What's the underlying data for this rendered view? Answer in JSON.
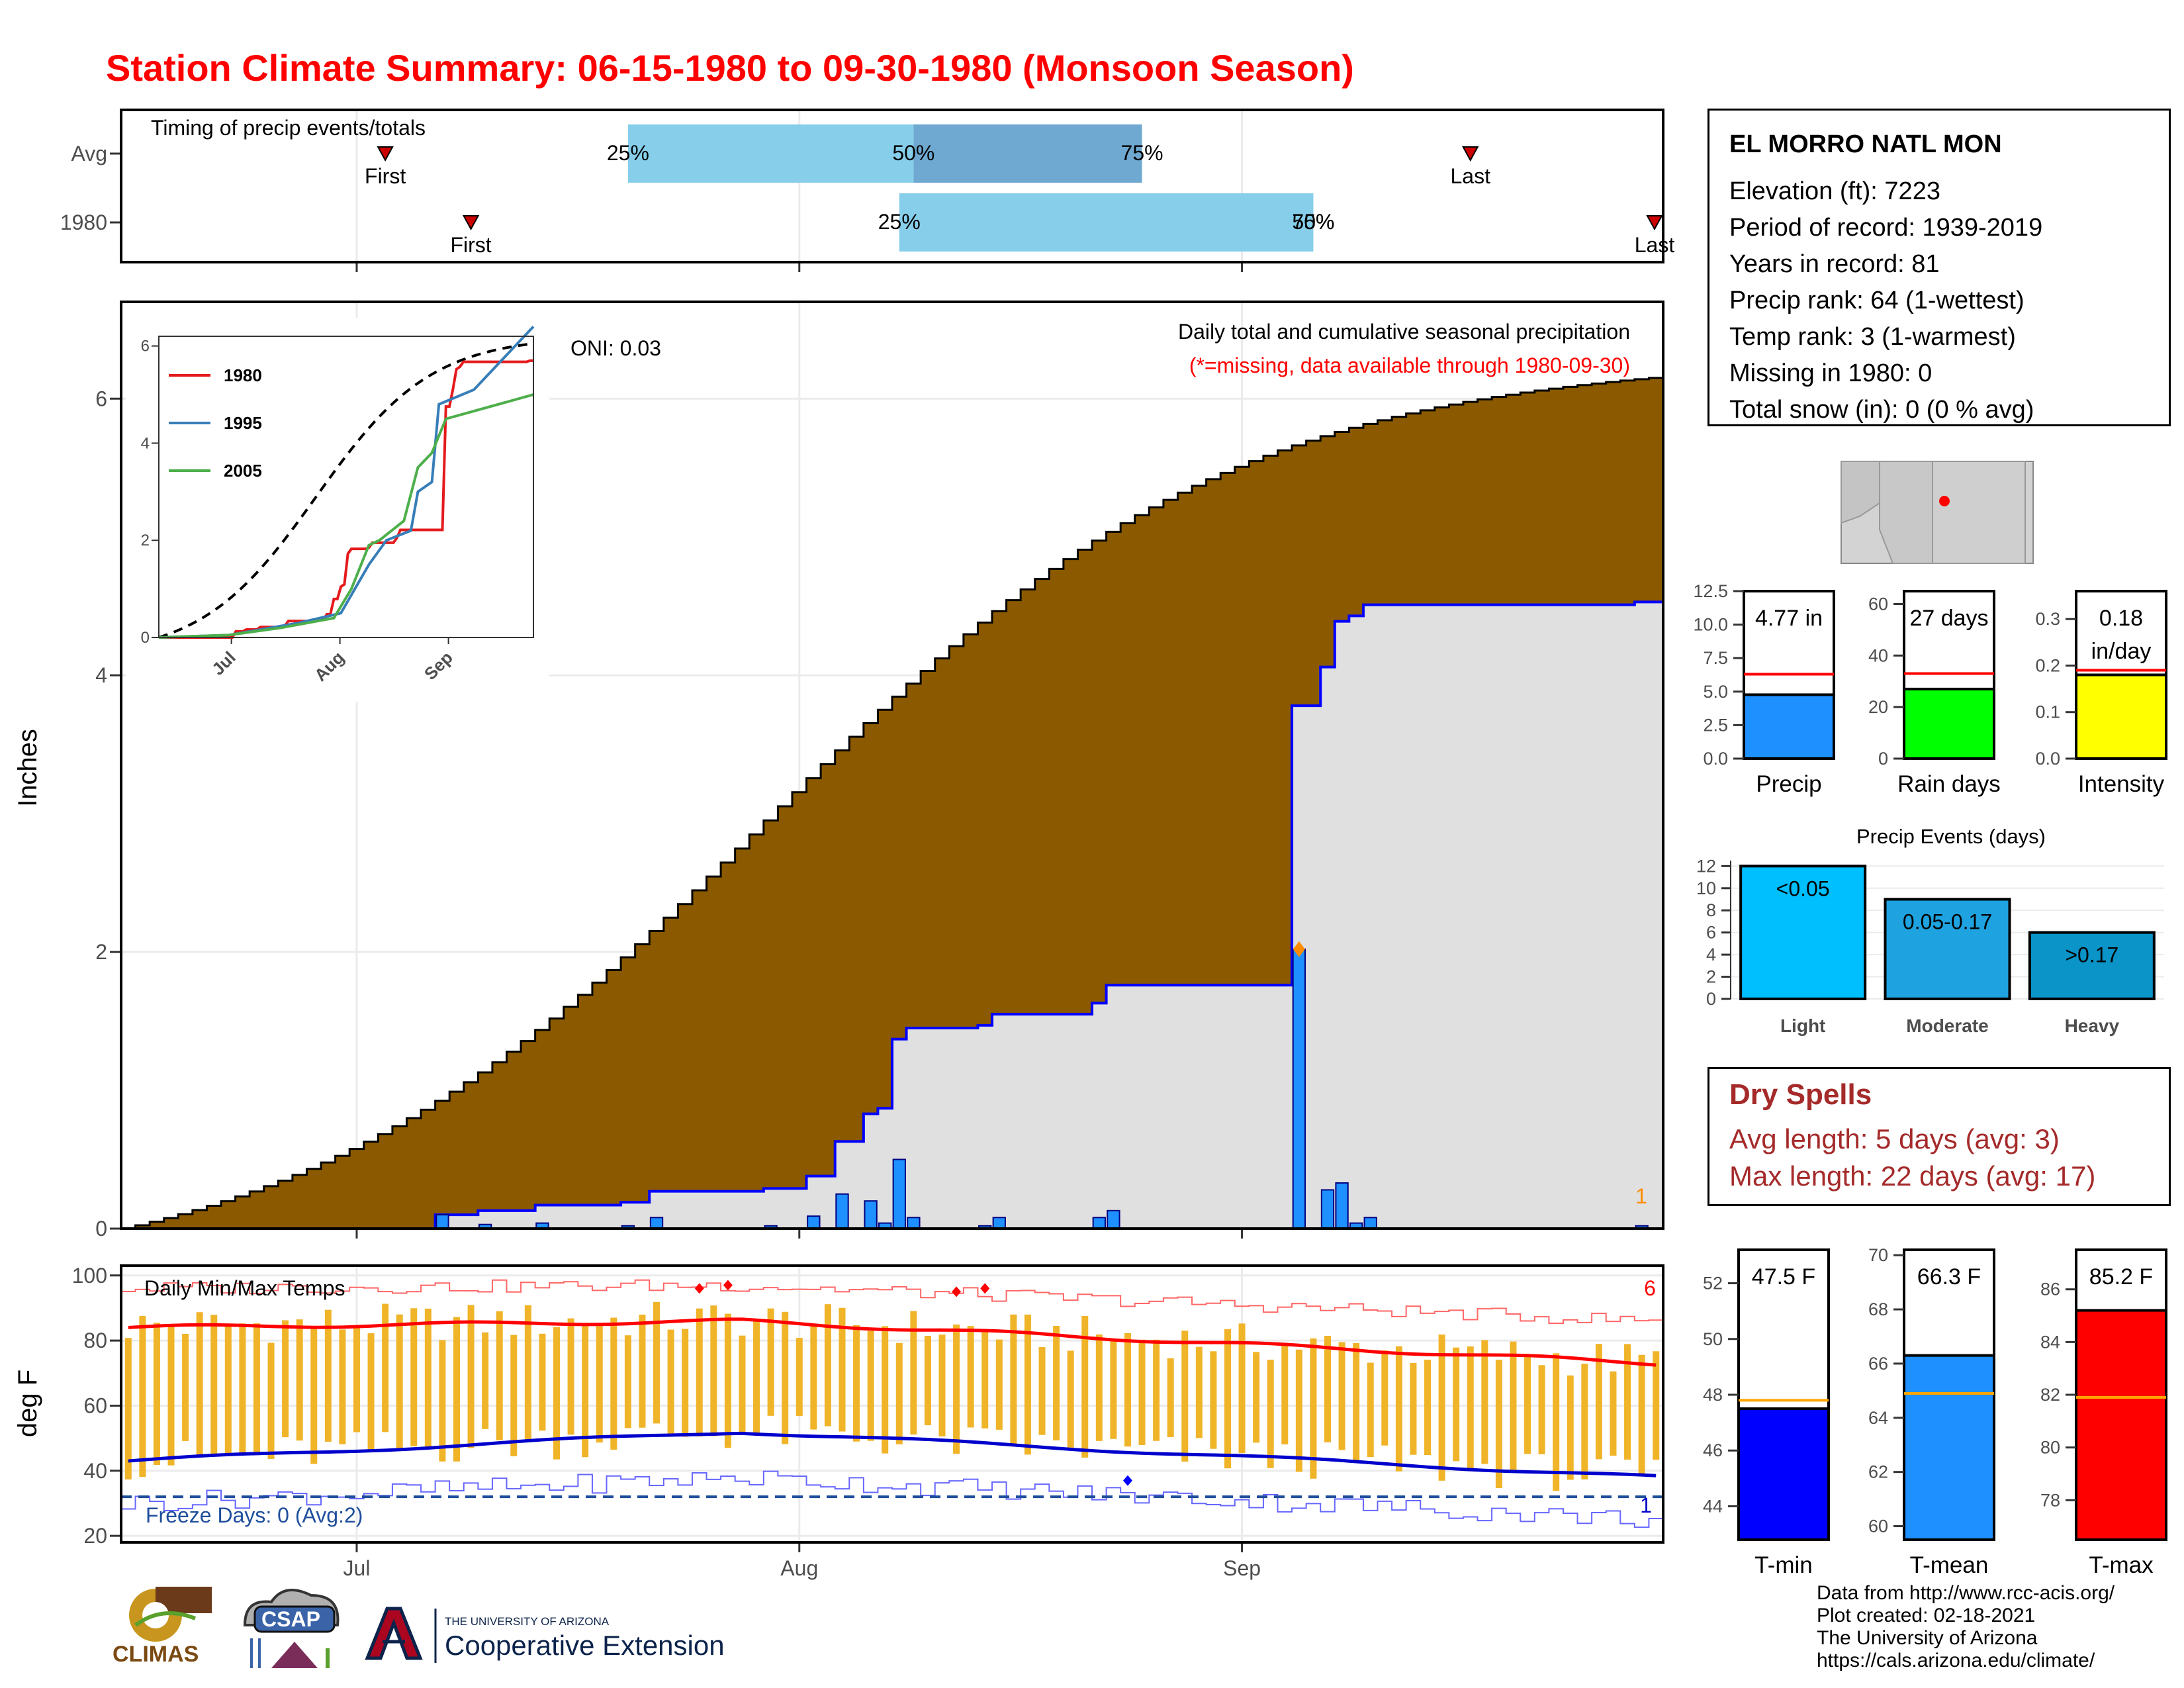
{
  "title": "Station Climate Summary: 06-15-1980 to 09-30-1980 (Monsoon Season)",
  "colors": {
    "title": "#ff0000",
    "cumulative_fill": "#8b5a00",
    "current_fill": "#e0e0e0",
    "current_line": "#0000ff",
    "daily_bar": "#1e90ff",
    "quartile_light": "#87ceeb",
    "quartile_dark": "#6fa8d0",
    "temp_bar": "#f0b429",
    "tmax_line": "#ff0000",
    "tmin_line": "#0000cd",
    "dry_spells": "#a52a2a"
  },
  "station": {
    "name": "EL MORRO NATL MON",
    "lines": [
      "Elevation (ft): 7223",
      "Period of record: 1939-2019",
      "Years in record: 81",
      "Precip rank: 64 (1-wettest)",
      "Temp rank: 3 (1-warmest)",
      "Missing in 1980: 0",
      "Total snow (in): 0 (0 % avg)"
    ]
  },
  "dry_spells": {
    "title": "Dry Spells",
    "avg_length": "Avg length: 5 days (avg: 3)",
    "max_length": "Max length: 22 days (avg: 17)"
  },
  "footer": {
    "lines": [
      "Data from http://www.rcc-acis.org/",
      "Plot created: 02-18-2021",
      "The University of Arizona",
      "https://cals.arizona.edu/climate/"
    ]
  },
  "logos": {
    "climas": "CLIMAS",
    "csap": "CSAP",
    "ua_small": "THE UNIVERSITY OF ARIZONA",
    "ua_large": "Cooperative Extension"
  },
  "chart_data": [
    {
      "id": "timing",
      "type": "bar",
      "title": "Timing of precip events/totals",
      "rows": [
        {
          "label": "Avg",
          "first": "07-03",
          "last": "09-17",
          "q25": "07-20",
          "q50": "08-09",
          "q75": "08-25",
          "q_labels": [
            "25%",
            "50%",
            "75%"
          ],
          "first_label": "First",
          "last_label": "Last"
        },
        {
          "label": "1980",
          "first": "07-09",
          "last": "09-30",
          "q25": "08-08",
          "q50": "09-06",
          "q75": "09-06",
          "q_labels": [
            "25%",
            "50%",
            "75%"
          ],
          "first_label": "First",
          "last_label": "Last"
        }
      ]
    },
    {
      "id": "precip",
      "type": "area",
      "title": "Daily total and cumulative seasonal precipitation",
      "subtitle": "(*=missing, data available through 1980-09-30)",
      "annotation": "ONI: 0.03",
      "count_label": "1",
      "ylabel": "Inches",
      "ylim": [
        0,
        6.7
      ],
      "yticks": [
        0,
        2,
        4,
        6
      ],
      "xticks": [
        "Jul",
        "Aug",
        "Sep"
      ],
      "avg_cumulative_end": 6.15,
      "current_total": 4.77,
      "daily_1980": [
        {
          "date": "07-07",
          "value": 0.1
        },
        {
          "date": "07-10",
          "value": 0.03
        },
        {
          "date": "07-14",
          "value": 0.04
        },
        {
          "date": "07-20",
          "value": 0.02
        },
        {
          "date": "07-22",
          "value": 0.08
        },
        {
          "date": "07-30",
          "value": 0.02
        },
        {
          "date": "08-02",
          "value": 0.09
        },
        {
          "date": "08-04",
          "value": 0.25
        },
        {
          "date": "08-06",
          "value": 0.2
        },
        {
          "date": "08-07",
          "value": 0.04
        },
        {
          "date": "08-08",
          "value": 0.5
        },
        {
          "date": "08-09",
          "value": 0.08
        },
        {
          "date": "08-14",
          "value": 0.02
        },
        {
          "date": "08-15",
          "value": 0.08
        },
        {
          "date": "08-22",
          "value": 0.08
        },
        {
          "date": "08-23",
          "value": 0.13
        },
        {
          "date": "09-05",
          "value": 2.02
        },
        {
          "date": "09-07",
          "value": 0.28
        },
        {
          "date": "09-08",
          "value": 0.33
        },
        {
          "date": "09-09",
          "value": 0.04
        },
        {
          "date": "09-10",
          "value": 0.08
        },
        {
          "date": "09-29",
          "value": 0.02
        }
      ],
      "inset": {
        "type": "line",
        "ylim": [
          0,
          6.2
        ],
        "yticks": [
          0,
          2,
          4,
          6
        ],
        "xticks": [
          "Jul",
          "Aug",
          "Sep"
        ],
        "series": [
          {
            "name": "1980",
            "color": "#e41a1c"
          },
          {
            "name": "1995",
            "color": "#377eb8"
          },
          {
            "name": "2005",
            "color": "#4daf4a"
          }
        ],
        "avg_style": "dashed"
      }
    },
    {
      "id": "temps",
      "type": "bar",
      "title": "Daily Min/Max Temps",
      "ylabel": "deg F",
      "ylim": [
        18,
        103
      ],
      "yticks": [
        20,
        40,
        60,
        80,
        100
      ],
      "xticks": [
        "Jul",
        "Aug",
        "Sep"
      ],
      "freeze_label": "Freeze Days: 0 (Avg:2)",
      "freeze_line": 32,
      "record_high_count": "6",
      "record_low_count": "1",
      "avg_tmax_start": 84,
      "avg_tmax_mid": 86,
      "avg_tmax_end": 73,
      "avg_tmin_start": 43,
      "avg_tmin_mid": 52,
      "avg_tmin_end": 38
    },
    {
      "id": "summary_precip",
      "type": "bar",
      "panels": [
        {
          "label": "Precip",
          "value": 4.77,
          "value_label": "4.77 in",
          "avg": 6.3,
          "ylim": [
            0,
            12.5
          ],
          "yticks": [
            "0.0",
            "2.5",
            "5.0",
            "7.5",
            "10.0",
            "12.5"
          ],
          "color": "#1e90ff"
        },
        {
          "label": "Rain days",
          "value": 27,
          "value_label": "27 days",
          "avg": 33,
          "ylim": [
            0,
            65
          ],
          "yticks": [
            "0",
            "20",
            "40",
            "60"
          ],
          "color": "#00ff00"
        },
        {
          "label": "Intensity",
          "value": 0.18,
          "value_label": "0.18",
          "value_unit": "in/day",
          "avg": 0.19,
          "ylim": [
            0,
            0.36
          ],
          "yticks": [
            "0.0",
            "0.1",
            "0.2",
            "0.3"
          ],
          "color": "#ffff00"
        }
      ]
    },
    {
      "id": "precip_events",
      "type": "bar",
      "title": "Precip Events (days)",
      "categories": [
        "Light",
        "Moderate",
        "Heavy"
      ],
      "bar_labels": [
        "<0.05",
        "0.05-0.17",
        ">0.17"
      ],
      "values": [
        12,
        9,
        6
      ],
      "colors": [
        "#00bfff",
        "#1ea2e0",
        "#0a94c8"
      ],
      "ylim": [
        0,
        12.5
      ],
      "yticks": [
        "0",
        "2",
        "4",
        "6",
        "8",
        "10",
        "12"
      ]
    },
    {
      "id": "summary_temp",
      "type": "bar",
      "panels": [
        {
          "label": "T-min",
          "value": 47.5,
          "value_label": "47.5 F",
          "avg": 47.8,
          "ylim": [
            42.8,
            53.2
          ],
          "yticks": [
            "44",
            "46",
            "48",
            "50",
            "52"
          ],
          "color": "#0000ff"
        },
        {
          "label": "T-mean",
          "value": 66.3,
          "value_label": "66.3 F",
          "avg": 64.9,
          "ylim": [
            59.5,
            70.2
          ],
          "yticks": [
            "60",
            "62",
            "64",
            "66",
            "68",
            "70"
          ],
          "color": "#1e90ff"
        },
        {
          "label": "T-max",
          "value": 85.2,
          "value_label": "85.2 F",
          "avg": 81.9,
          "ylim": [
            76.5,
            87.5
          ],
          "yticks": [
            "78",
            "80",
            "82",
            "84",
            "86"
          ],
          "color": "#ff0000"
        }
      ]
    }
  ]
}
